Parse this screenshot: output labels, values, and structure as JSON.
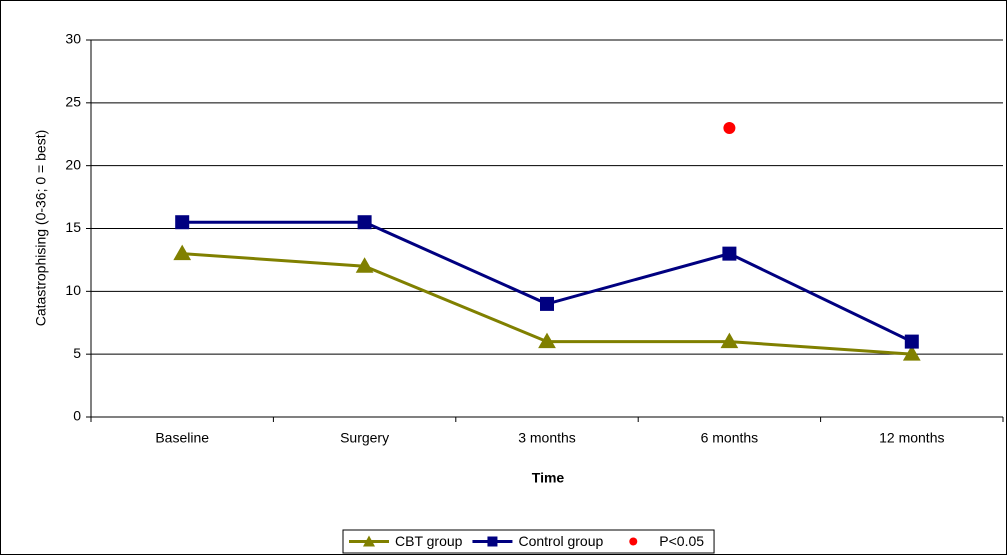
{
  "chart_data": {
    "type": "line",
    "x_label": "Time",
    "y_label": "Catastrophising (0-36; 0 = best)",
    "categories": [
      "Baseline",
      "Surgery",
      "3 months",
      "6 months",
      "12 months"
    ],
    "series": [
      {
        "name": "CBT group",
        "color": "#808000",
        "marker": "triangle",
        "line": true,
        "values": [
          13,
          12,
          6,
          6,
          5
        ]
      },
      {
        "name": "Control group",
        "color": "#000080",
        "marker": "square",
        "line": true,
        "values": [
          15.5,
          15.5,
          9,
          13,
          6
        ]
      },
      {
        "name": "P<0.05",
        "color": "#ff0000",
        "marker": "circle",
        "line": false,
        "values": [
          null,
          null,
          null,
          23,
          null
        ]
      }
    ],
    "ylim": [
      0,
      30
    ],
    "yticks": [
      0,
      5,
      10,
      15,
      20,
      25,
      30
    ],
    "grid": true,
    "legend": "bottom"
  }
}
